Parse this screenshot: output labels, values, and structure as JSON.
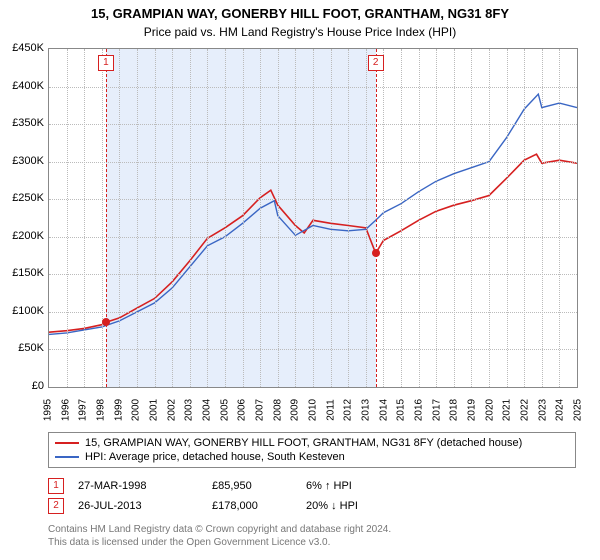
{
  "title": "15, GRAMPIAN WAY, GONERBY HILL FOOT, GRANTHAM, NG31 8FY",
  "subtitle": "Price paid vs. HM Land Registry's House Price Index (HPI)",
  "chart": {
    "type": "line",
    "background_color": "#ffffff",
    "grid_color": "#bbbbbb",
    "border_color": "#888888",
    "band_color": "#e6eefb",
    "ylim": [
      0,
      450000
    ],
    "ytick_step": 50000,
    "ytick_labels": [
      "£0",
      "£50K",
      "£100K",
      "£150K",
      "£200K",
      "£250K",
      "£300K",
      "£350K",
      "£400K",
      "£450K"
    ],
    "xlim": [
      1995,
      2025
    ],
    "xticks": [
      1995,
      1996,
      1997,
      1998,
      1999,
      2000,
      2001,
      2002,
      2003,
      2004,
      2005,
      2006,
      2007,
      2008,
      2009,
      2010,
      2011,
      2012,
      2013,
      2014,
      2015,
      2016,
      2017,
      2018,
      2019,
      2020,
      2021,
      2022,
      2023,
      2024,
      2025
    ],
    "ownership_band": {
      "from": 1998.23,
      "to": 2013.56
    },
    "series": [
      {
        "name": "15, GRAMPIAN WAY, GONERBY HILL FOOT, GRANTHAM, NG31 8FY (detached house)",
        "color": "#d62020",
        "line_width": 1.6,
        "points": [
          [
            1995,
            73000
          ],
          [
            1996,
            75000
          ],
          [
            1997,
            78000
          ],
          [
            1998,
            83000
          ],
          [
            1998.23,
            85950
          ],
          [
            1999,
            92000
          ],
          [
            2000,
            105000
          ],
          [
            2001,
            118000
          ],
          [
            2002,
            140000
          ],
          [
            2003,
            168000
          ],
          [
            2004,
            198000
          ],
          [
            2005,
            212000
          ],
          [
            2006,
            228000
          ],
          [
            2007,
            252000
          ],
          [
            2007.6,
            262000
          ],
          [
            2008,
            242000
          ],
          [
            2009,
            215000
          ],
          [
            2009.5,
            205000
          ],
          [
            2010,
            222000
          ],
          [
            2011,
            218000
          ],
          [
            2012,
            215000
          ],
          [
            2013,
            212000
          ],
          [
            2013.56,
            178000
          ],
          [
            2014,
            195000
          ],
          [
            2015,
            208000
          ],
          [
            2016,
            222000
          ],
          [
            2017,
            234000
          ],
          [
            2018,
            242000
          ],
          [
            2019,
            248000
          ],
          [
            2020,
            255000
          ],
          [
            2021,
            278000
          ],
          [
            2022,
            302000
          ],
          [
            2022.7,
            310000
          ],
          [
            2023,
            298000
          ],
          [
            2024,
            302000
          ],
          [
            2025,
            298000
          ]
        ]
      },
      {
        "name": "HPI: Average price, detached house, South Kesteven",
        "color": "#3a66c4",
        "line_width": 1.4,
        "points": [
          [
            1995,
            70000
          ],
          [
            1996,
            72000
          ],
          [
            1997,
            76000
          ],
          [
            1998,
            80000
          ],
          [
            1999,
            88000
          ],
          [
            2000,
            100000
          ],
          [
            2001,
            112000
          ],
          [
            2002,
            132000
          ],
          [
            2003,
            160000
          ],
          [
            2004,
            188000
          ],
          [
            2005,
            200000
          ],
          [
            2006,
            218000
          ],
          [
            2007,
            238000
          ],
          [
            2007.8,
            248000
          ],
          [
            2008,
            228000
          ],
          [
            2009,
            202000
          ],
          [
            2010,
            215000
          ],
          [
            2011,
            210000
          ],
          [
            2012,
            208000
          ],
          [
            2013,
            210000
          ],
          [
            2013.56,
            222000
          ],
          [
            2014,
            232000
          ],
          [
            2015,
            244000
          ],
          [
            2016,
            260000
          ],
          [
            2017,
            274000
          ],
          [
            2018,
            284000
          ],
          [
            2019,
            292000
          ],
          [
            2020,
            300000
          ],
          [
            2021,
            332000
          ],
          [
            2022,
            370000
          ],
          [
            2022.8,
            390000
          ],
          [
            2023,
            372000
          ],
          [
            2024,
            378000
          ],
          [
            2025,
            372000
          ]
        ]
      }
    ],
    "markers": [
      {
        "id": "1",
        "x": 1998.23,
        "y": 85950,
        "color": "#d62020"
      },
      {
        "id": "2",
        "x": 2013.56,
        "y": 178000,
        "color": "#d62020"
      }
    ]
  },
  "legend": {
    "s1": "15, GRAMPIAN WAY, GONERBY HILL FOOT, GRANTHAM, NG31 8FY (detached house)",
    "s2": "HPI: Average price, detached house, South Kesteven"
  },
  "transactions": [
    {
      "id": "1",
      "date": "27-MAR-1998",
      "price": "£85,950",
      "hpi": "6% ↑ HPI",
      "color": "#d62020"
    },
    {
      "id": "2",
      "date": "26-JUL-2013",
      "price": "£178,000",
      "hpi": "20% ↓ HPI",
      "color": "#d62020"
    }
  ],
  "footer_line1": "Contains HM Land Registry data © Crown copyright and database right 2024.",
  "footer_line2": "This data is licensed under the Open Government Licence v3.0."
}
